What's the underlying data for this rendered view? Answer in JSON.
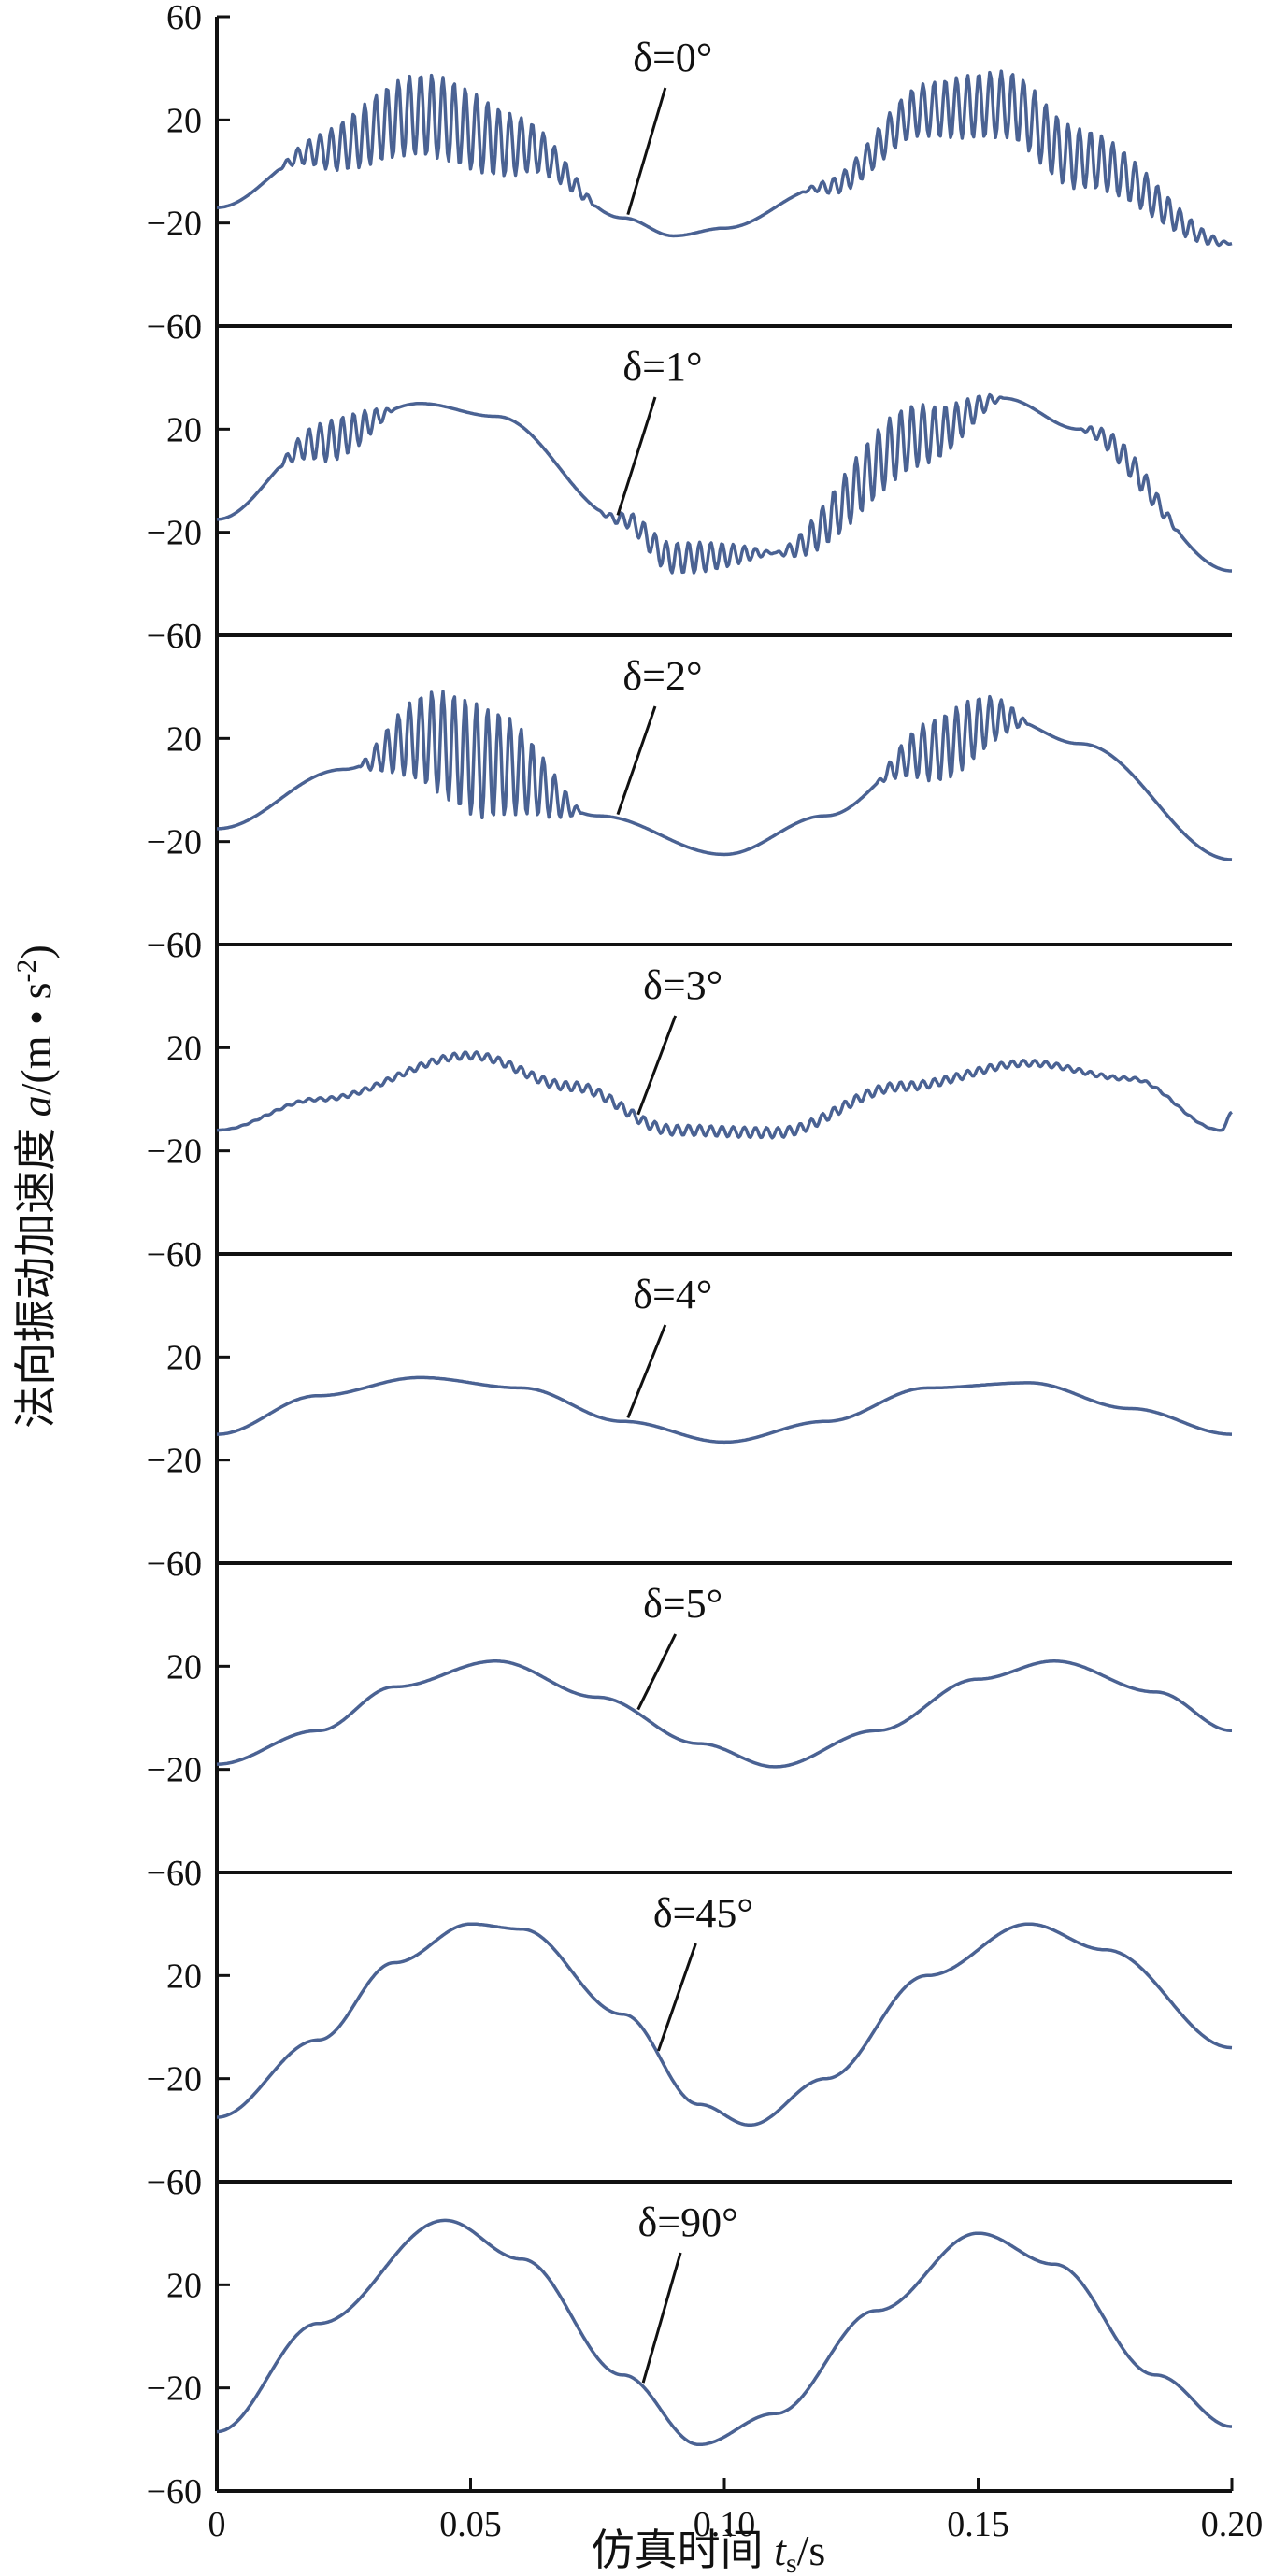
{
  "chart_data": {
    "type": "line",
    "xlabel": "仿真时间 ts/s",
    "ylabel": "法向振动加速度 a/(m·s-2)",
    "xlim": [
      0,
      0.2
    ],
    "x_ticks": [
      "0",
      "0.05",
      "0.10",
      "0.15",
      "0.20"
    ],
    "y_ticks": [
      "60",
      "20",
      "−20",
      "−60"
    ],
    "ylim": [
      -60,
      60
    ],
    "panels": [
      {
        "name": "δ=0°",
        "label_x": 0.081,
        "base": [
          [
            0,
            -14
          ],
          [
            0.02,
            8
          ],
          [
            0.04,
            22
          ],
          [
            0.06,
            10
          ],
          [
            0.08,
            -18
          ],
          [
            0.09,
            -25
          ],
          [
            0.1,
            -22
          ],
          [
            0.12,
            -6
          ],
          [
            0.14,
            24
          ],
          [
            0.155,
            26
          ],
          [
            0.17,
            5
          ],
          [
            0.2,
            -28
          ]
        ],
        "osc": [
          [
            0.012,
            0.075,
            16
          ],
          [
            0.115,
            0.2,
            13
          ]
        ]
      },
      {
        "name": "δ=1°",
        "label_x": 0.079,
        "base": [
          [
            0,
            -15
          ],
          [
            0.02,
            15
          ],
          [
            0.04,
            30
          ],
          [
            0.055,
            25
          ],
          [
            0.08,
            -15
          ],
          [
            0.09,
            -30
          ],
          [
            0.11,
            -28
          ],
          [
            0.14,
            18
          ],
          [
            0.155,
            32
          ],
          [
            0.17,
            20
          ],
          [
            0.2,
            -35
          ]
        ],
        "osc": [
          [
            0.012,
            0.035,
            8
          ],
          [
            0.075,
            0.11,
            6
          ],
          [
            0.11,
            0.155,
            13
          ],
          [
            0.17,
            0.19,
            5
          ]
        ]
      },
      {
        "name": "δ=2°",
        "label_x": 0.079,
        "base": [
          [
            0,
            -15
          ],
          [
            0.025,
            8
          ],
          [
            0.04,
            20
          ],
          [
            0.055,
            10
          ],
          [
            0.075,
            -10
          ],
          [
            0.1,
            -25
          ],
          [
            0.12,
            -10
          ],
          [
            0.14,
            15
          ],
          [
            0.155,
            28
          ],
          [
            0.17,
            18
          ],
          [
            0.2,
            -27
          ]
        ],
        "osc": [
          [
            0.028,
            0.072,
            22
          ],
          [
            0.13,
            0.16,
            13
          ]
        ]
      },
      {
        "name": "δ=3°",
        "label_x": 0.083,
        "base": [
          [
            0,
            -12
          ],
          [
            0.02,
            0
          ],
          [
            0.05,
            17
          ],
          [
            0.07,
            5
          ],
          [
            0.09,
            -12
          ],
          [
            0.11,
            -13
          ],
          [
            0.135,
            5
          ],
          [
            0.16,
            14
          ],
          [
            0.18,
            8
          ],
          [
            0.198,
            -12
          ],
          [
            0.2,
            -5
          ]
        ],
        "osc": [
          [
            0.0,
            0.2,
            2
          ]
        ]
      },
      {
        "name": "δ=4°",
        "label_x": 0.081,
        "base": [
          [
            0,
            -10
          ],
          [
            0.02,
            5
          ],
          [
            0.04,
            12
          ],
          [
            0.06,
            8
          ],
          [
            0.08,
            -5
          ],
          [
            0.1,
            -13
          ],
          [
            0.12,
            -5
          ],
          [
            0.14,
            8
          ],
          [
            0.16,
            10
          ],
          [
            0.18,
            0
          ],
          [
            0.2,
            -10
          ]
        ],
        "osc": []
      },
      {
        "name": "δ=5°",
        "label_x": 0.083,
        "base": [
          [
            0,
            -18
          ],
          [
            0.02,
            -5
          ],
          [
            0.035,
            12
          ],
          [
            0.055,
            22
          ],
          [
            0.075,
            8
          ],
          [
            0.095,
            -10
          ],
          [
            0.11,
            -19
          ],
          [
            0.13,
            -5
          ],
          [
            0.15,
            15
          ],
          [
            0.165,
            22
          ],
          [
            0.185,
            10
          ],
          [
            0.2,
            -5
          ]
        ],
        "osc": []
      },
      {
        "name": "δ=45°",
        "label_x": 0.087,
        "base": [
          [
            0,
            -35
          ],
          [
            0.02,
            -5
          ],
          [
            0.035,
            25
          ],
          [
            0.05,
            40
          ],
          [
            0.06,
            38
          ],
          [
            0.08,
            5
          ],
          [
            0.095,
            -30
          ],
          [
            0.105,
            -38
          ],
          [
            0.12,
            -20
          ],
          [
            0.14,
            20
          ],
          [
            0.16,
            40
          ],
          [
            0.175,
            30
          ],
          [
            0.2,
            -8
          ]
        ],
        "osc": []
      },
      {
        "name": "δ=90°",
        "label_x": 0.084,
        "base": [
          [
            0,
            -37
          ],
          [
            0.02,
            5
          ],
          [
            0.045,
            45
          ],
          [
            0.06,
            30
          ],
          [
            0.08,
            -15
          ],
          [
            0.095,
            -42
          ],
          [
            0.11,
            -30
          ],
          [
            0.13,
            10
          ],
          [
            0.15,
            40
          ],
          [
            0.165,
            28
          ],
          [
            0.185,
            -15
          ],
          [
            0.2,
            -35
          ]
        ],
        "osc": []
      }
    ]
  }
}
